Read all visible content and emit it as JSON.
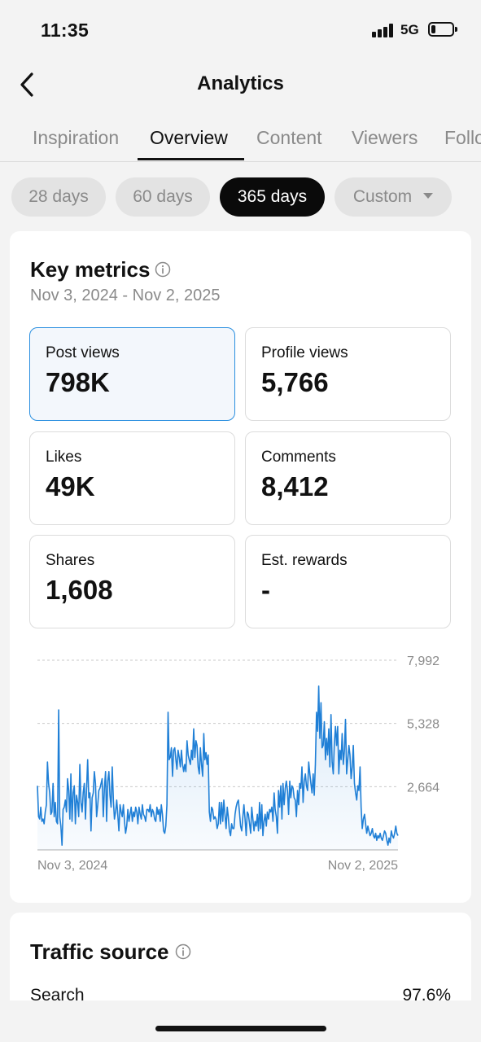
{
  "status_bar": {
    "time": "11:35",
    "network": "5G",
    "battery_level": 0.2
  },
  "header": {
    "title": "Analytics",
    "back_icon": "chevron-left-icon"
  },
  "tabs": [
    {
      "label": "Inspiration",
      "active": false
    },
    {
      "label": "Overview",
      "active": true
    },
    {
      "label": "Content",
      "active": false
    },
    {
      "label": "Viewers",
      "active": false
    },
    {
      "label": "Followers",
      "active": false
    }
  ],
  "ranges": {
    "options": [
      "28 days",
      "60 days",
      "365 days",
      "Custom"
    ],
    "selected": "365 days"
  },
  "key_metrics": {
    "title": "Key metrics",
    "info_icon": "info-icon",
    "date_range": "Nov 3, 2024 - Nov 2, 2025",
    "cards": [
      {
        "label": "Post views",
        "value": "798K",
        "selected": true
      },
      {
        "label": "Profile views",
        "value": "5,766",
        "selected": false
      },
      {
        "label": "Likes",
        "value": "49K",
        "selected": false
      },
      {
        "label": "Comments",
        "value": "8,412",
        "selected": false
      },
      {
        "label": "Shares",
        "value": "1,608",
        "selected": false
      },
      {
        "label": "Est. rewards",
        "value": "-",
        "selected": false
      }
    ]
  },
  "chart_data": {
    "type": "area",
    "y_ticks": [
      "7,992",
      "5,328",
      "2,664"
    ],
    "ylim": [
      0,
      7992
    ],
    "x_labels": [
      "Nov 3, 2024",
      "Nov 2, 2025"
    ],
    "color": "#1f7fd6",
    "grid": true,
    "values": [
      2700,
      1400,
      1300,
      1800,
      1200,
      1300,
      1100,
      1600,
      1900,
      3700,
      2800,
      2400,
      1500,
      1600,
      2800,
      1400,
      2000,
      1200,
      1100,
      5900,
      1400,
      1000,
      200,
      1700,
      1800,
      2100,
      1600,
      3000,
      2500,
      1300,
      3200,
      1200,
      2400,
      2700,
      1100,
      2300,
      2000,
      1400,
      3600,
      2000,
      1600,
      2400,
      2800,
      1300,
      2500,
      3800,
      2200,
      2400,
      800,
      2200,
      2400,
      3300,
      2800,
      1400,
      1900,
      2500,
      2600,
      2800,
      3000,
      1400,
      2600,
      3300,
      1200,
      2900,
      3300,
      2300,
      1800,
      3500,
      2100,
      1300,
      1600,
      2100,
      1500,
      800,
      1900,
      1600,
      1400,
      1900,
      1200,
      700,
      1000,
      1700,
      1200,
      1500,
      1800,
      1200,
      1600,
      1400,
      1800,
      1600,
      1100,
      1800,
      1500,
      1300,
      1900,
      1500,
      1400,
      1200,
      1700,
      1700,
      1600,
      1900,
      1400,
      1700,
      1600,
      1300,
      1200,
      1800,
      1500,
      1700,
      1200,
      1900,
      1500,
      800,
      700,
      1000,
      1900,
      5800,
      3800,
      3900,
      4300,
      3100,
      4200,
      4300,
      3800,
      3400,
      4200,
      3900,
      3500,
      4200,
      3600,
      3300,
      3600,
      3300,
      4600,
      4000,
      3800,
      3600,
      4200,
      3800,
      5100,
      3900,
      4600,
      4400,
      3500,
      3200,
      4300,
      3600,
      3100,
      4900,
      3800,
      4100,
      3600,
      4000,
      1600,
      1200,
      1800,
      1700,
      1300,
      1400,
      1300,
      900,
      1100,
      2000,
      1100,
      2000,
      1200,
      2100,
      1500,
      900,
      1800,
      1400,
      800,
      600,
      1100,
      900,
      900,
      1500,
      1800,
      2000,
      2100,
      1600,
      1000,
      800,
      1400,
      1900,
      1300,
      600,
      1600,
      1500,
      1100,
      700,
      1800,
      1300,
      800,
      1200,
      1000,
      1500,
      800,
      2000,
      900,
      1900,
      600,
      1200,
      1500,
      1000,
      1600,
      1300,
      1700,
      1600,
      1800,
      1200,
      2400,
      1700,
      1400,
      700,
      2500,
      1800,
      2700,
      1300,
      2800,
      1900,
      2600,
      2900,
      2500,
      1500,
      2900,
      2200,
      2700,
      2600,
      2200,
      2100,
      1400,
      2500,
      1900,
      2800,
      2600,
      3500,
      2000,
      2900,
      3200,
      2700,
      2500,
      3700,
      3200,
      2800,
      2400,
      3200,
      2300,
      3600,
      5800,
      5000,
      6900,
      4700,
      6200,
      4300,
      4400,
      5400,
      3800,
      4700,
      4000,
      5100,
      3500,
      5700,
      3700,
      3200,
      4500,
      5200,
      4400,
      5200,
      3200,
      4200,
      3800,
      4900,
      3600,
      4200,
      5500,
      3200,
      3800,
      4400,
      4000,
      3000,
      3500,
      4400,
      2800,
      2400,
      2100,
      2700,
      2500,
      3500,
      1800,
      900,
      1300,
      1500,
      1100,
      700,
      1000,
      800,
      600,
      700,
      900,
      600,
      500,
      700,
      400,
      600,
      500,
      700,
      500,
      400,
      600,
      800,
      700,
      400,
      200,
      500,
      300,
      800,
      600,
      500,
      700,
      1000,
      700,
      600
    ]
  },
  "traffic_source": {
    "title": "Traffic source",
    "info_icon": "info-icon",
    "rows": [
      {
        "label": "Search",
        "value": "97.6%"
      }
    ]
  }
}
